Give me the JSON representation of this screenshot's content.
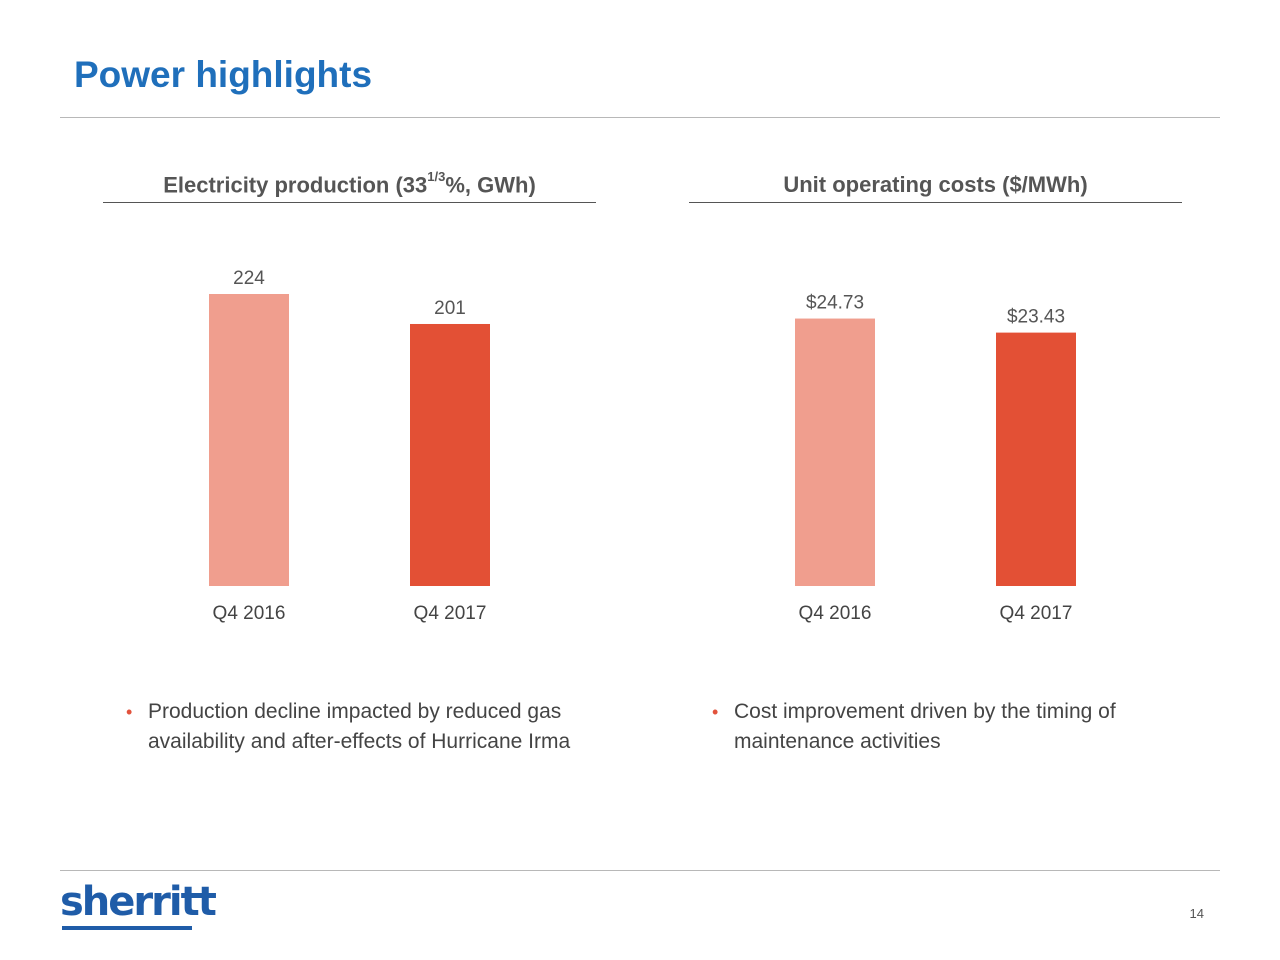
{
  "slide": {
    "title": "Power highlights",
    "page_number": "14",
    "logo_text": "sherritt"
  },
  "left": {
    "title_main": "Electricity production (33",
    "title_sup": "1/3",
    "title_end": "%, GWh)",
    "bullets": [
      "Production decline impacted by reduced gas availability and after-effects of Hurricane Irma"
    ]
  },
  "right": {
    "title": "Unit operating costs ($/MWh)",
    "bullets": [
      "Cost improvement driven by the timing of maintenance activities"
    ]
  },
  "colors": {
    "title_blue": "#1f6fbb",
    "bar_light": "#f09e8e",
    "bar_dark": "#e35035",
    "bullet_dot": "#e2523c"
  },
  "chart_data": [
    {
      "type": "bar",
      "title": "Electricity production (33 1/3%, GWh)",
      "categories": [
        "Q4 2016",
        "Q4 2017"
      ],
      "values": [
        224,
        201
      ],
      "value_labels": [
        "224",
        "201"
      ],
      "ylim": [
        0,
        224
      ],
      "grid": false,
      "xlabel": "",
      "ylabel": ""
    },
    {
      "type": "bar",
      "title": "Unit operating costs ($/MWh)",
      "categories": [
        "Q4 2016",
        "Q4 2017"
      ],
      "values": [
        24.73,
        23.43
      ],
      "value_labels": [
        "$24.73",
        "$23.43"
      ],
      "ylim": [
        0,
        27.0
      ],
      "grid": false,
      "xlabel": "",
      "ylabel": ""
    }
  ]
}
